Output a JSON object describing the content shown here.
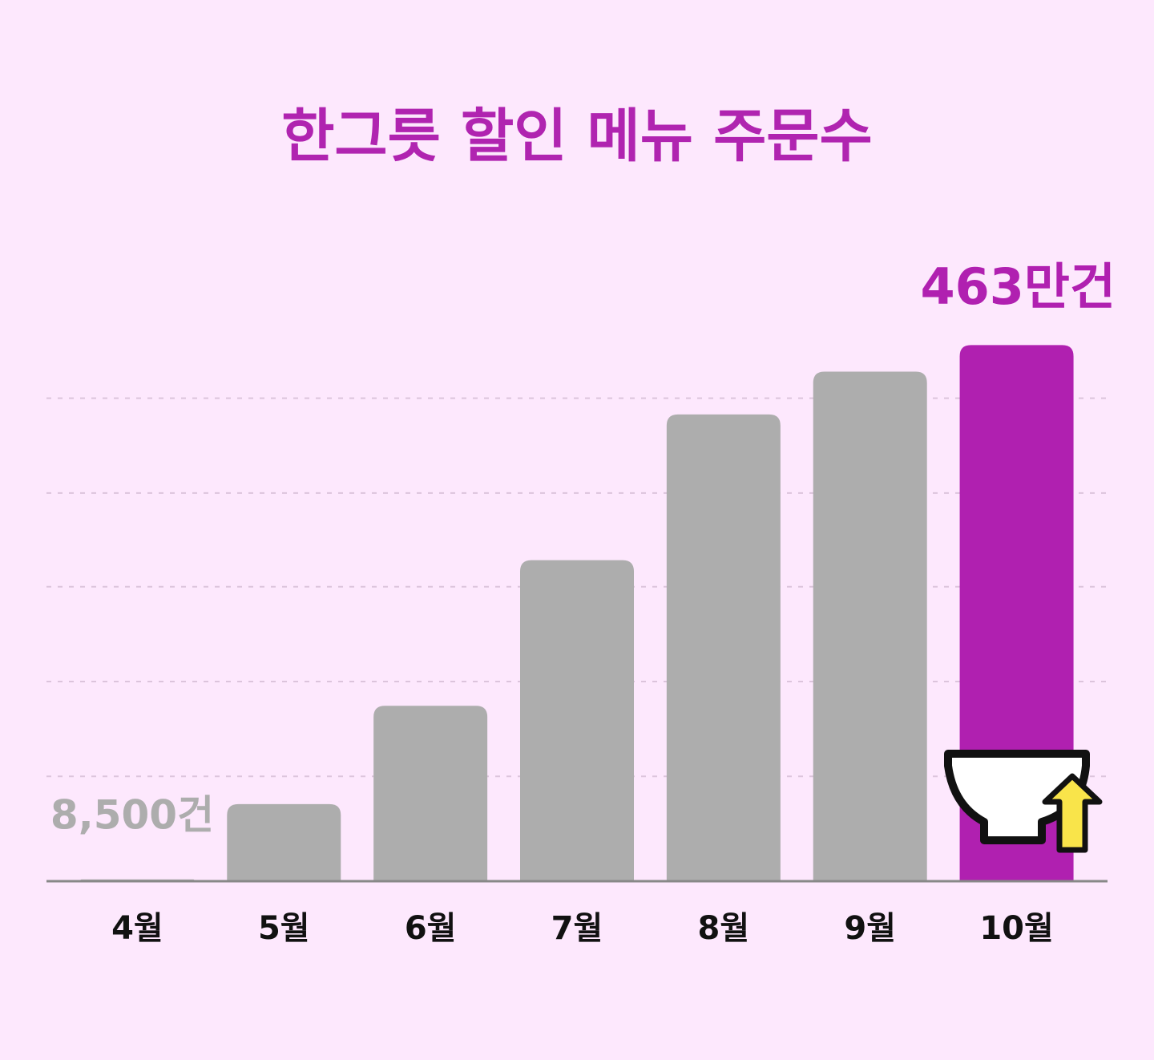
{
  "chart_data": {
    "type": "bar",
    "title": "한그릇 할인 메뉴 주문수",
    "categories": [
      "4월",
      "5월",
      "6월",
      "7월",
      "8월",
      "9월",
      "10월"
    ],
    "values": [
      8500,
      660000,
      1510000,
      2770000,
      4030000,
      4400000,
      4630000
    ],
    "value_labels": [
      "8,500건",
      null,
      null,
      null,
      null,
      null,
      "463만건"
    ],
    "colors": [
      "#adadad",
      "#adadad",
      "#adadad",
      "#adadad",
      "#adadad",
      "#adadad",
      "#b020b0"
    ],
    "ylim": [
      0,
      5000000
    ],
    "yticks": [
      900000,
      1720000,
      2540000,
      3350000,
      4170000
    ],
    "grid": true
  }
}
